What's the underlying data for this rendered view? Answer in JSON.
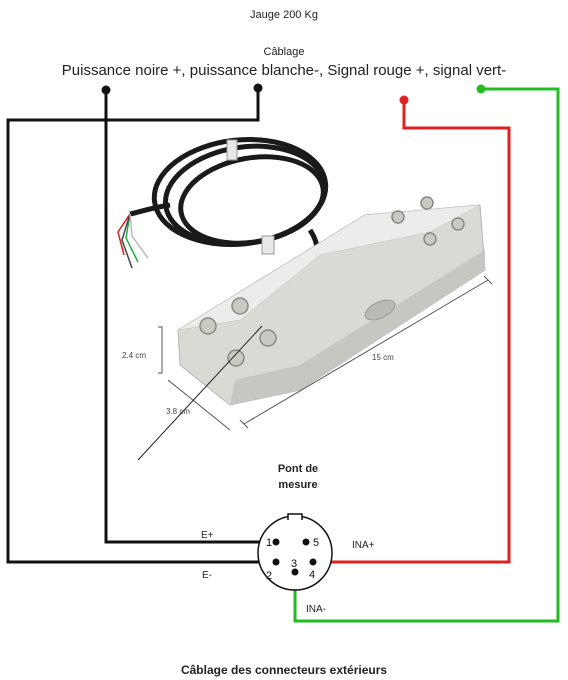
{
  "title": "Jauge 200 Kg",
  "cabling": {
    "label": "Câblage",
    "description": "Puissance noire +, puissance blanche-, Signal rouge +, signal vert-"
  },
  "load_cell": {
    "dim_height": "2.4 cm",
    "dim_length": "15 cm",
    "dim_width": "3.8 cm"
  },
  "bridge_label": "Pont de mesure",
  "connector": {
    "labels": {
      "e_plus": "E+",
      "e_minus": "E-",
      "ina_plus": "INA+",
      "ina_minus": "INA-"
    },
    "pins": [
      "1",
      "2",
      "3",
      "4",
      "5"
    ]
  },
  "footer": "Câblage des connecteurs extérieurs",
  "colors": {
    "black": "#111111",
    "red": "#e02020",
    "green": "#22bb22",
    "metal": "#d9d9d6"
  }
}
